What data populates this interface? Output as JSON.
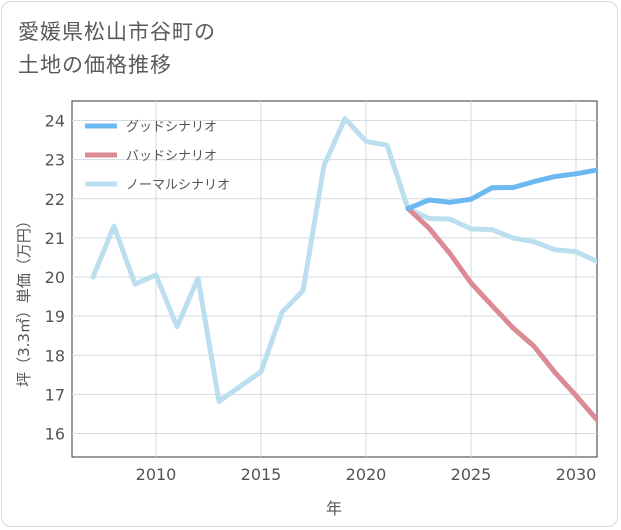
{
  "title_lines": [
    "愛媛県松山市谷町の",
    "土地の価格推移"
  ],
  "chart_data": {
    "type": "line",
    "title": "愛媛県松山市谷町の土地の価格推移",
    "xlabel": "年",
    "ylabel": "坪（3.3㎡）単価（万円）",
    "xlim": [
      2006,
      2031
    ],
    "ylim": [
      15.4,
      24.5
    ],
    "x_ticks": [
      2010,
      2015,
      2020,
      2025,
      2030
    ],
    "y_ticks": [
      16,
      17,
      18,
      19,
      20,
      21,
      22,
      23,
      24
    ],
    "grid": true,
    "legend_position": "top-left",
    "series": [
      {
        "name": "グッドシナリオ",
        "color": "#6cb8f0",
        "x": [
          2022,
          2023,
          2024,
          2025,
          2026,
          2027,
          2028,
          2029,
          2030,
          2031
        ],
        "values": [
          21.75,
          21.97,
          21.91,
          21.99,
          22.28,
          22.29,
          22.44,
          22.57,
          22.64,
          22.74
        ]
      },
      {
        "name": "バッドシナリオ",
        "color": "#dc8a93",
        "x": [
          2022,
          2023,
          2024,
          2025,
          2026,
          2027,
          2028,
          2029,
          2030,
          2031
        ],
        "values": [
          21.75,
          21.25,
          20.6,
          19.85,
          19.27,
          18.7,
          18.23,
          17.56,
          16.97,
          16.35
        ]
      },
      {
        "name": "ノーマルシナリオ",
        "color": "#bcdff0",
        "x": [
          2007,
          2008,
          2009,
          2010,
          2011,
          2012,
          2013,
          2014,
          2015,
          2016,
          2017,
          2018,
          2019,
          2020,
          2021,
          2022,
          2023,
          2024,
          2025,
          2026,
          2027,
          2028,
          2029,
          2030,
          2031
        ],
        "values": [
          20.0,
          21.3,
          19.82,
          20.05,
          18.73,
          19.97,
          16.82,
          17.2,
          17.58,
          19.1,
          19.65,
          22.85,
          24.05,
          23.47,
          23.37,
          21.75,
          21.5,
          21.48,
          21.23,
          21.21,
          21.0,
          20.9,
          20.7,
          20.65,
          20.4
        ]
      }
    ]
  }
}
